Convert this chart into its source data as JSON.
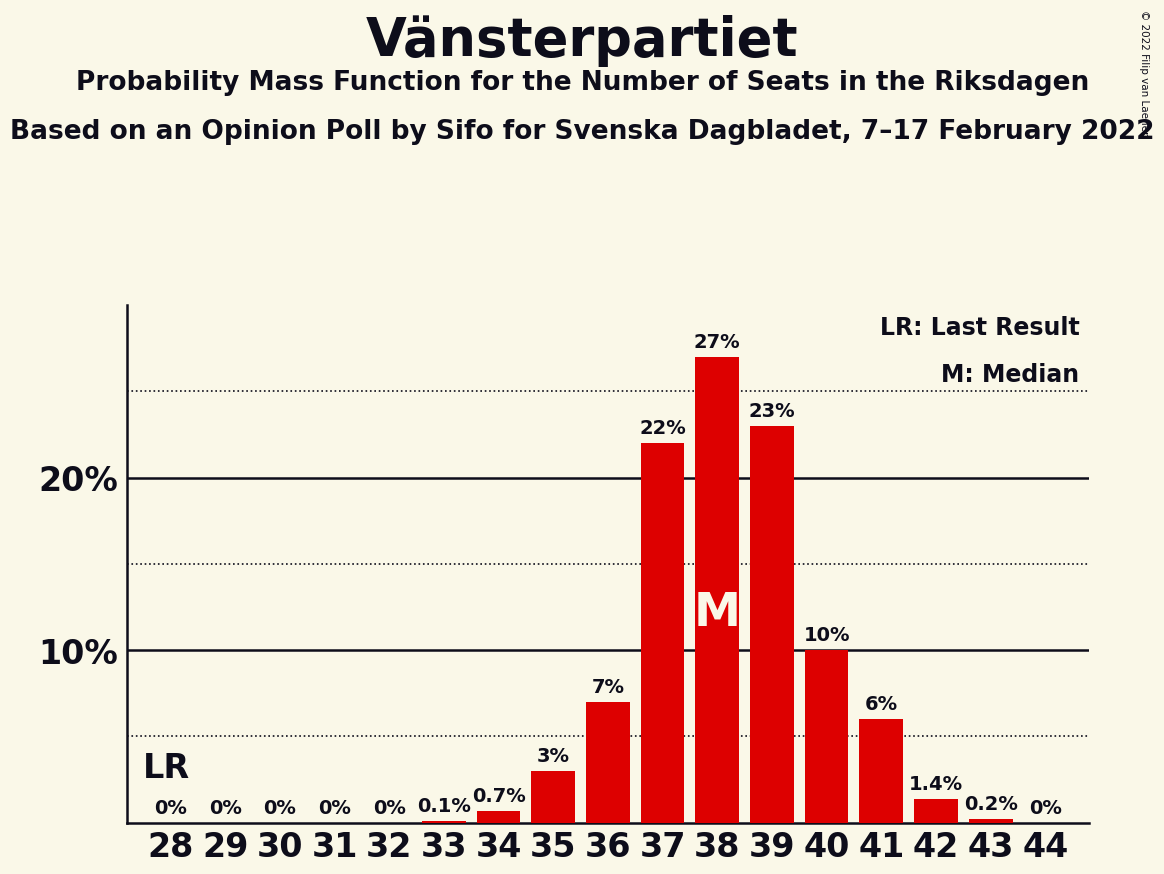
{
  "seats": [
    28,
    29,
    30,
    31,
    32,
    33,
    34,
    35,
    36,
    37,
    38,
    39,
    40,
    41,
    42,
    43,
    44
  ],
  "probabilities": [
    0.0,
    0.0,
    0.0,
    0.0,
    0.0,
    0.1,
    0.7,
    3.0,
    7.0,
    22.0,
    27.0,
    23.0,
    10.0,
    6.0,
    1.4,
    0.2,
    0.0
  ],
  "bar_color": "#dd0000",
  "background_color": "#faf8e8",
  "title": "Vänsterpartiet",
  "subtitle1": "Probability Mass Function for the Number of Seats in the Riksdagen",
  "subtitle2": "Based on an Opinion Poll by Sifo for Svenska Dagbladet, 7–17 February 2022",
  "lr_label": "LR",
  "median_label": "M",
  "legend_lr": "LR: Last Result",
  "legend_m": "M: Median",
  "copyright": "© 2022 Filip van Laenen",
  "ylim": [
    0,
    30
  ],
  "solid_gridlines": [
    10,
    20
  ],
  "dotted_gridlines": [
    5,
    15,
    25
  ],
  "bar_label_fontsize": 14,
  "title_fontsize": 38,
  "subtitle_fontsize": 19,
  "axis_ytick_fontsize": 24,
  "tick_fontsize": 24,
  "legend_fontsize": 17,
  "text_color": "#0d0d1a",
  "lr_seat": 28,
  "median_seat": 38,
  "median_bar_label_color": "#faf8e8"
}
